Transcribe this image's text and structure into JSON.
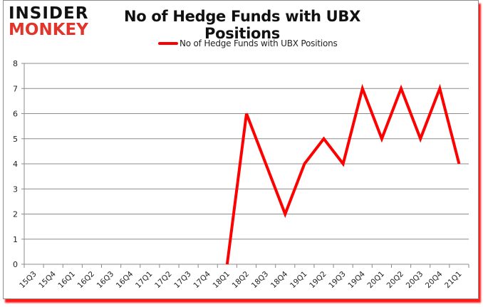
{
  "logo": {
    "line1": "INSIDER",
    "line2": "MONKEY"
  },
  "colors": {
    "series": "#ff0000",
    "grid": "#8c8c8c",
    "frame_shadow": "#ff1a1a",
    "logo_red": "#e0352b"
  },
  "chart_data": {
    "type": "line",
    "title": "No of Hedge Funds with UBX Positions",
    "xlabel": "",
    "ylabel": "",
    "ylim": [
      0,
      8
    ],
    "yticks": [
      0,
      1,
      2,
      3,
      4,
      5,
      6,
      7,
      8
    ],
    "grid": true,
    "legend_position": "top",
    "categories": [
      "15Q3",
      "15Q4",
      "16Q1",
      "16Q2",
      "16Q3",
      "16Q4",
      "17Q1",
      "17Q2",
      "17Q3",
      "17Q4",
      "18Q1",
      "18Q2",
      "18Q3",
      "18Q4",
      "19Q1",
      "19Q2",
      "19Q3",
      "19Q4",
      "20Q1",
      "20Q2",
      "20Q3",
      "20Q4",
      "21Q1"
    ],
    "series": [
      {
        "name": "No of Hedge Funds with UBX Positions",
        "values": [
          null,
          null,
          null,
          null,
          null,
          null,
          null,
          null,
          null,
          null,
          0,
          6,
          4,
          2,
          4,
          5,
          4,
          7,
          5,
          7,
          5,
          7,
          4
        ]
      }
    ]
  }
}
